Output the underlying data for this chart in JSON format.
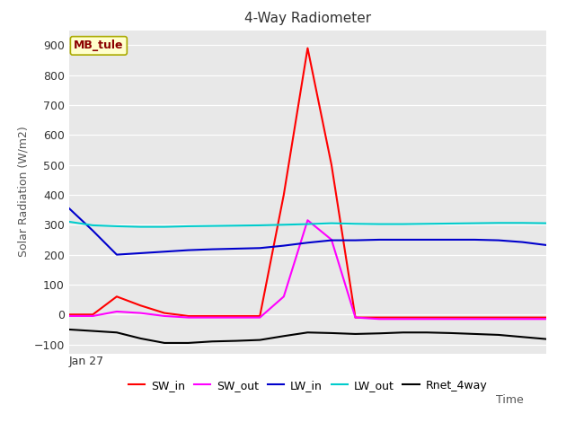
{
  "title": "4-Way Radiometer",
  "xlabel": "Time",
  "ylabel": "Solar Radiation (W/m2)",
  "annotation": "MB_tule",
  "x_tick_label": "Jan 27",
  "ylim": [
    -130,
    950
  ],
  "yticks": [
    -100,
    0,
    100,
    200,
    300,
    400,
    500,
    600,
    700,
    800,
    900
  ],
  "background_color": "#e8e8e8",
  "series": {
    "SW_in": {
      "color": "#ff0000",
      "x": [
        0,
        1,
        2,
        3,
        4,
        5,
        6,
        7,
        8,
        9,
        10,
        11,
        12,
        13,
        14,
        15,
        16,
        17,
        18,
        19,
        20
      ],
      "y": [
        0,
        0,
        60,
        30,
        5,
        -5,
        -5,
        -5,
        -5,
        400,
        890,
        500,
        -10,
        -10,
        -10,
        -10,
        -10,
        -10,
        -10,
        -10,
        -10
      ]
    },
    "SW_out": {
      "color": "#ff00ff",
      "x": [
        0,
        1,
        2,
        3,
        4,
        5,
        6,
        7,
        8,
        9,
        10,
        11,
        12,
        13,
        14,
        15,
        16,
        17,
        18,
        19,
        20
      ],
      "y": [
        -5,
        -5,
        10,
        5,
        -5,
        -10,
        -10,
        -10,
        -10,
        60,
        315,
        250,
        -10,
        -15,
        -15,
        -15,
        -15,
        -15,
        -15,
        -15,
        -15
      ]
    },
    "LW_in": {
      "color": "#0000cc",
      "x": [
        0,
        1,
        2,
        3,
        4,
        5,
        6,
        7,
        8,
        9,
        10,
        11,
        12,
        13,
        14,
        15,
        16,
        17,
        18,
        19,
        20
      ],
      "y": [
        355,
        280,
        200,
        205,
        210,
        215,
        218,
        220,
        222,
        230,
        240,
        248,
        248,
        250,
        250,
        250,
        250,
        250,
        248,
        242,
        232
      ]
    },
    "LW_out": {
      "color": "#00cccc",
      "x": [
        0,
        1,
        2,
        3,
        4,
        5,
        6,
        7,
        8,
        9,
        10,
        11,
        12,
        13,
        14,
        15,
        16,
        17,
        18,
        19,
        20
      ],
      "y": [
        310,
        298,
        295,
        293,
        293,
        295,
        296,
        297,
        298,
        300,
        302,
        305,
        303,
        302,
        302,
        303,
        304,
        305,
        306,
        306,
        305
      ]
    },
    "Rnet_4way": {
      "color": "#000000",
      "x": [
        0,
        1,
        2,
        3,
        4,
        5,
        6,
        7,
        8,
        9,
        10,
        11,
        12,
        13,
        14,
        15,
        16,
        17,
        18,
        19,
        20
      ],
      "y": [
        -50,
        -55,
        -60,
        -80,
        -95,
        -95,
        -90,
        -88,
        -85,
        -72,
        -60,
        -62,
        -65,
        -63,
        -60,
        -60,
        -62,
        -65,
        -68,
        -75,
        -82
      ]
    }
  },
  "legend_items": [
    "SW_in",
    "SW_out",
    "LW_in",
    "LW_out",
    "Rnet_4way"
  ],
  "legend_colors": [
    "#ff0000",
    "#ff00ff",
    "#0000cc",
    "#00cccc",
    "#000000"
  ]
}
